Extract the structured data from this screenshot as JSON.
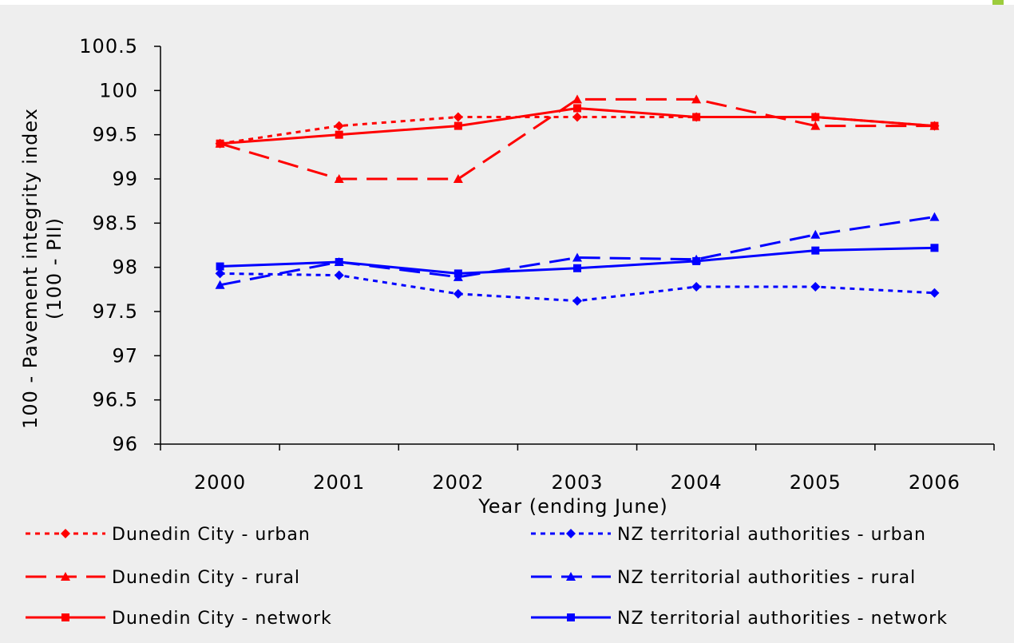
{
  "chart_data": {
    "type": "line",
    "title": "",
    "xlabel": "Year (ending June)",
    "ylabel_line1": "100 - Pavement integrity index",
    "ylabel_line2": "(100 - PII)",
    "categories": [
      "2000",
      "2001",
      "2002",
      "2003",
      "2004",
      "2005",
      "2006"
    ],
    "ylim": [
      96,
      100.5
    ],
    "yticks": [
      "96",
      "96.5",
      "97",
      "97.5",
      "98",
      "98.5",
      "99",
      "99.5",
      "100",
      "100.5"
    ],
    "grid": false,
    "legend_position": "bottom",
    "series": [
      {
        "name": "Dunedin City - urban",
        "values": [
          99.4,
          99.6,
          99.7,
          99.7,
          99.7,
          99.7,
          99.6
        ],
        "color": "#ff0000",
        "dash": "dotted",
        "marker": "diamond"
      },
      {
        "name": "Dunedin City - rural",
        "values": [
          99.4,
          99.0,
          99.0,
          99.9,
          99.9,
          99.6,
          99.6
        ],
        "color": "#ff0000",
        "dash": "dashed",
        "marker": "triangle"
      },
      {
        "name": "Dunedin City - network",
        "values": [
          99.4,
          99.5,
          99.6,
          99.8,
          99.7,
          99.7,
          99.6
        ],
        "color": "#ff0000",
        "dash": "solid",
        "marker": "square"
      },
      {
        "name": "NZ territorial authorities - urban",
        "values": [
          97.93,
          97.91,
          97.7,
          97.62,
          97.78,
          97.78,
          97.71
        ],
        "color": "#0000ff",
        "dash": "dotted",
        "marker": "diamond"
      },
      {
        "name": "NZ territorial authorities - rural",
        "values": [
          97.8,
          98.06,
          97.89,
          98.11,
          98.09,
          98.37,
          98.57
        ],
        "color": "#0000ff",
        "dash": "dashed",
        "marker": "triangle"
      },
      {
        "name": "NZ territorial authorities - network",
        "values": [
          98.01,
          98.06,
          97.93,
          97.99,
          98.07,
          98.19,
          98.22
        ],
        "color": "#0000ff",
        "dash": "solid",
        "marker": "square"
      }
    ]
  }
}
